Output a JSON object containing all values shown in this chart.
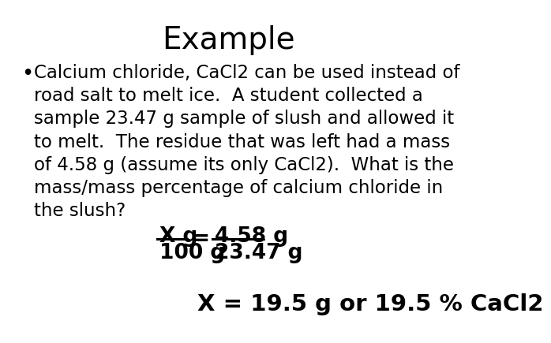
{
  "title": "Example",
  "title_fontsize": 28,
  "bg_color": "#ffffff",
  "text_color": "#000000",
  "bullet_lines": [
    "Calcium chloride, CaCl2 can be used instead of",
    "road salt to melt ice.  A student collected a",
    "sample 23.47 g sample of slush and allowed it",
    "to melt.  The residue that was left had a mass",
    "of 4.58 g (assume its only CaCl2).  What is the",
    "mass/mass percentage of calcium chloride in",
    "the slush?"
  ],
  "body_fontsize": 16.5,
  "equation_fontsize": 19,
  "result_fontsize": 21,
  "frac_left_num": "X g",
  "frac_left_den": "100 g",
  "frac_right_num": "4.58 g",
  "frac_right_den": "23.47 g",
  "result_text": "X = 19.5 g or 19.5 % CaCl2"
}
